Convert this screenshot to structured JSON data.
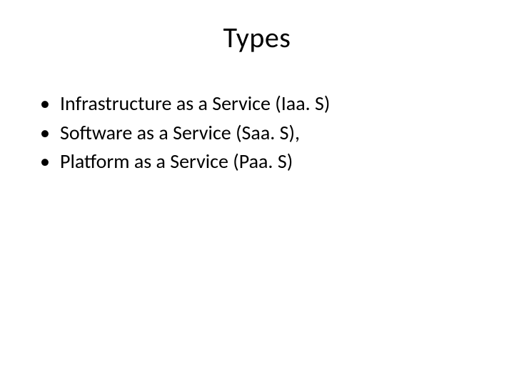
{
  "slide": {
    "title": "Types",
    "bullets": [
      "Infrastructure as a Service (Iaa. S)",
      "Software as a Service (Saa. S),",
      "Platform as a Service (Paa. S)"
    ]
  },
  "style": {
    "background_color": "#ffffff",
    "text_color": "#000000",
    "title_fontsize": 40,
    "body_fontsize": 28,
    "font_family": "Calibri"
  }
}
